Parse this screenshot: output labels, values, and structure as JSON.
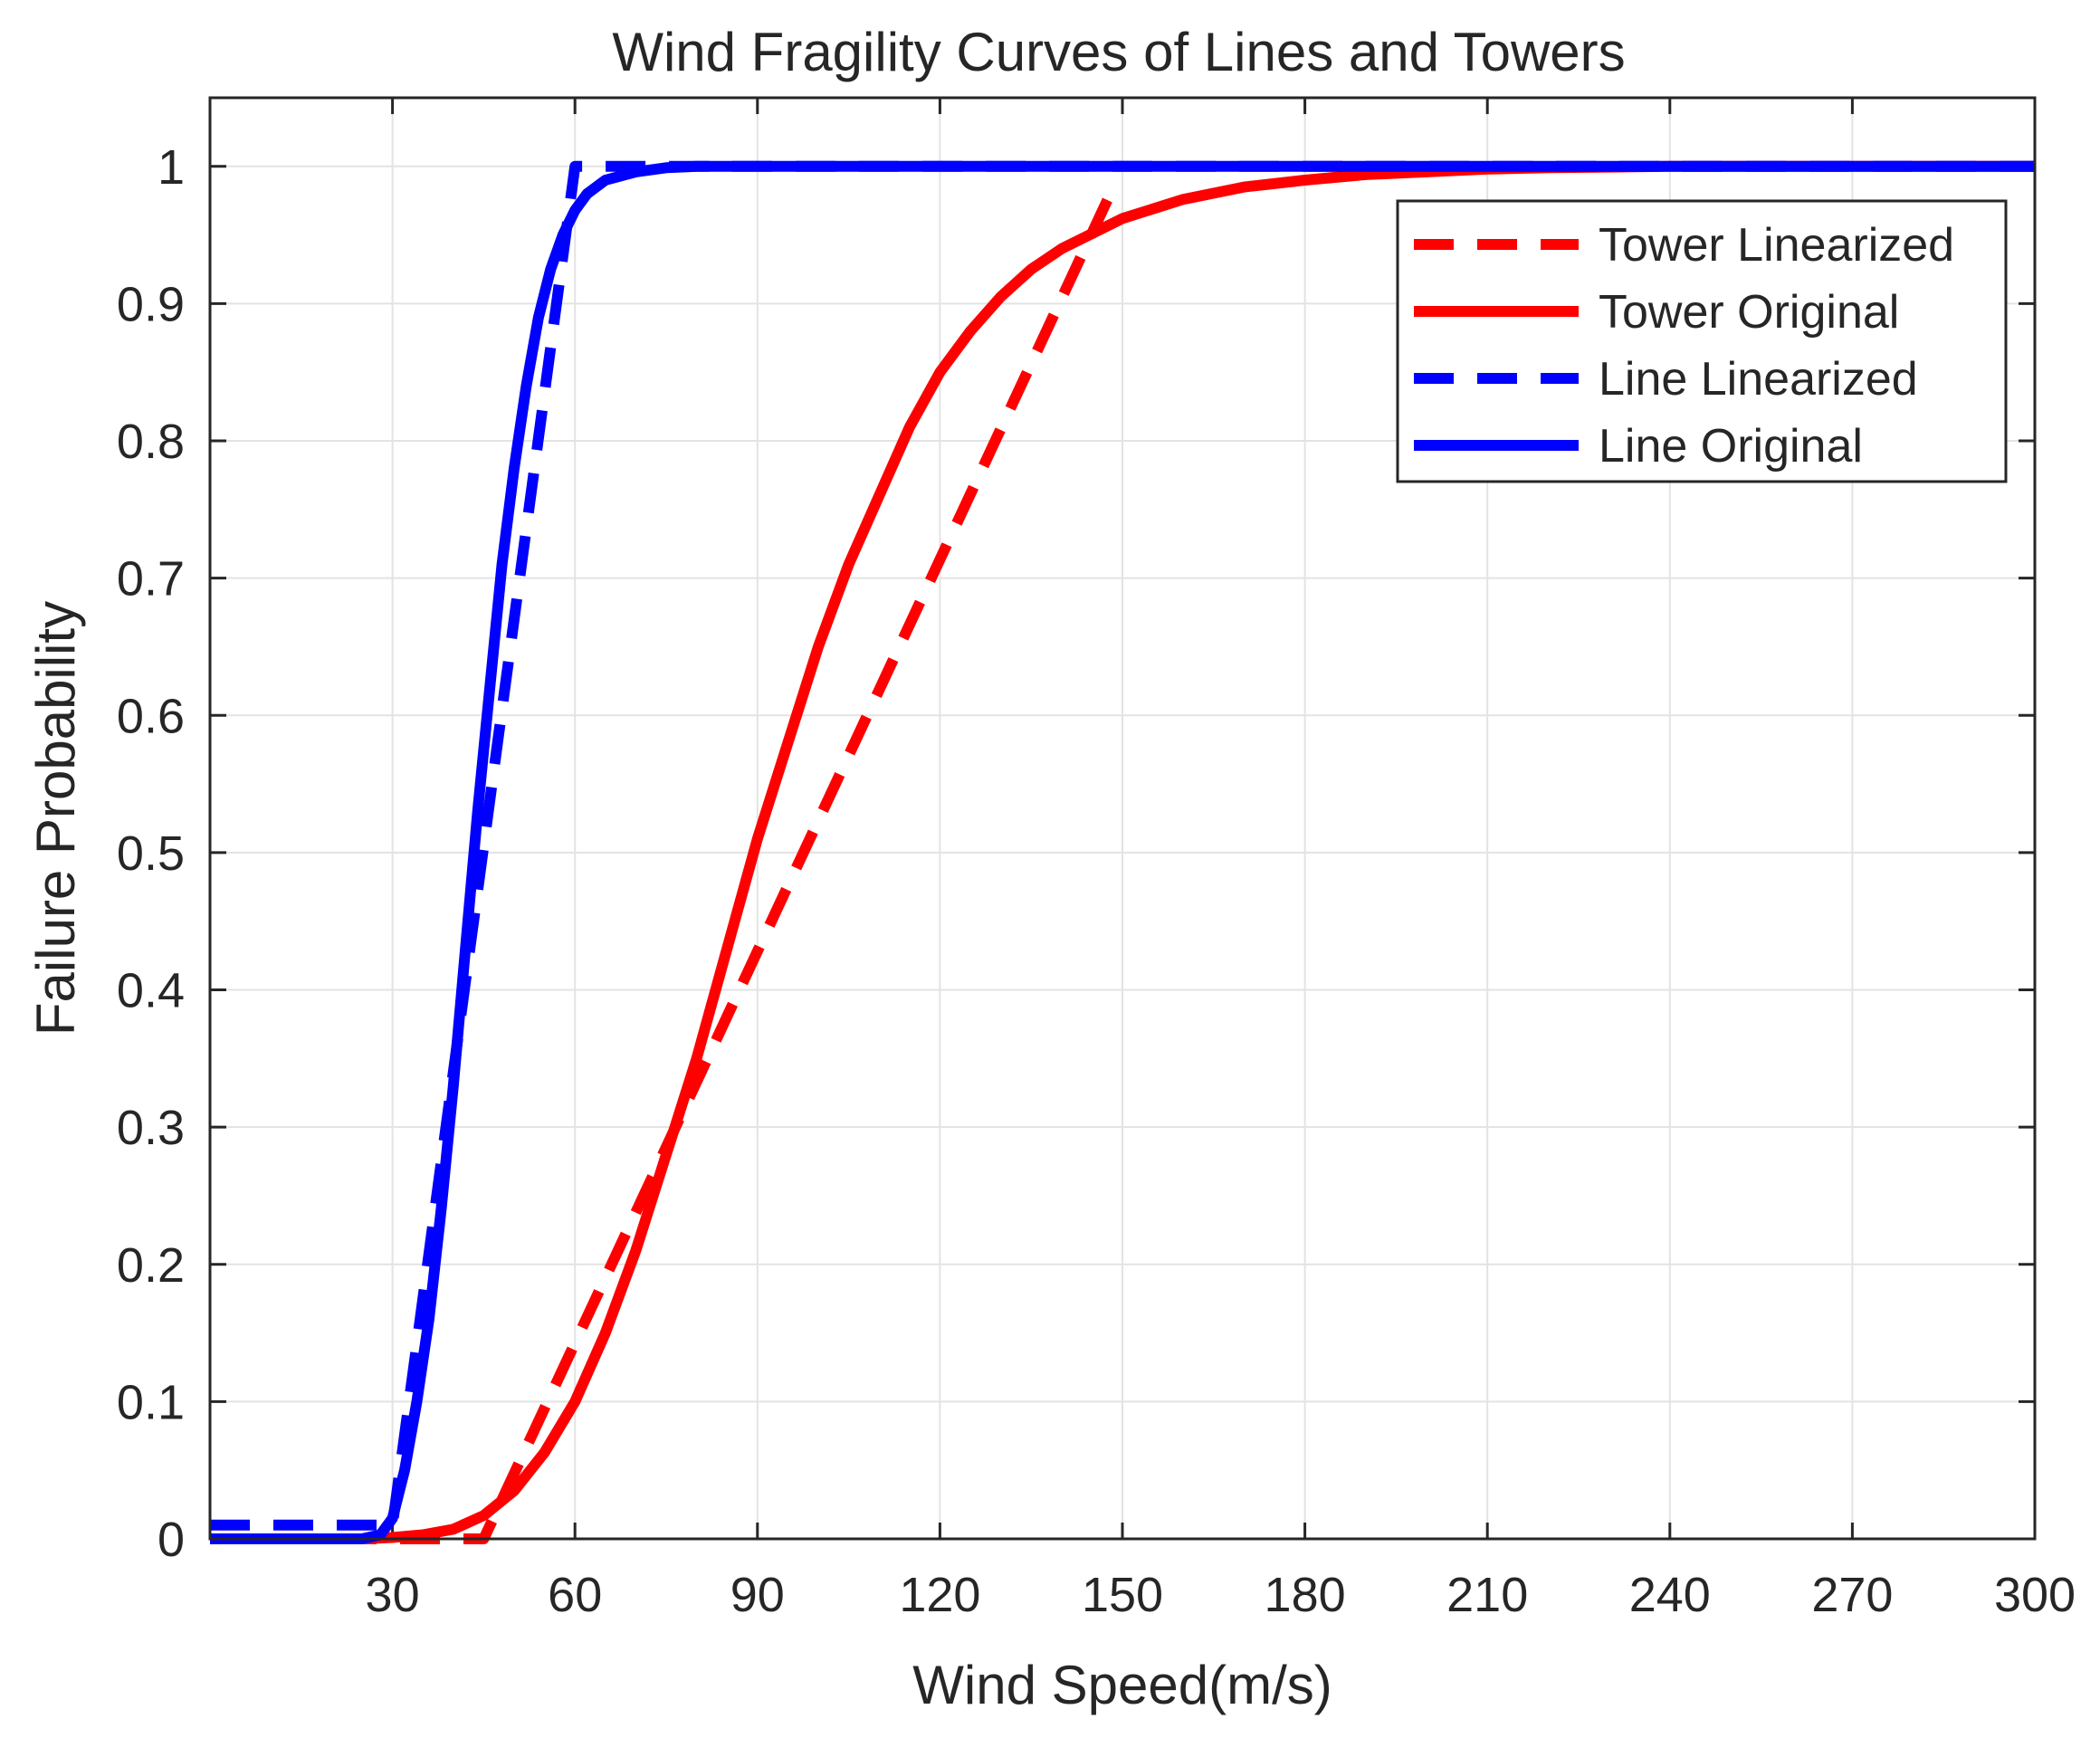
{
  "chart_data": {
    "type": "line",
    "title": "Wind Fragility Curves of Lines and Towers",
    "xlabel": "Wind Speed(m/s)",
    "ylabel": "Failure Probability",
    "xlim": [
      0,
      300
    ],
    "ylim": [
      0,
      1.05
    ],
    "xticks": [
      30,
      60,
      90,
      120,
      150,
      180,
      210,
      240,
      270,
      300
    ],
    "yticks": [
      0,
      0.1,
      0.2,
      0.3,
      0.4,
      0.5,
      0.6,
      0.7,
      0.8,
      0.9,
      1
    ],
    "xtick_labels": [
      "30",
      "60",
      "90",
      "120",
      "150",
      "180",
      "210",
      "240",
      "270",
      "300"
    ],
    "ytick_labels": [
      "0",
      "0.1",
      "0.2",
      "0.3",
      "0.4",
      "0.5",
      "0.6",
      "0.7",
      "0.8",
      "0.9",
      "1"
    ],
    "grid": true,
    "legend_position": "top-right",
    "series": [
      {
        "name": "Tower Linearized",
        "color": "#ff0000",
        "style": "dashed",
        "x": [
          0,
          45,
          148
        ],
        "y": [
          0,
          0,
          0.98
        ]
      },
      {
        "name": "Tower Original",
        "color": "#ff0000",
        "style": "solid",
        "x": [
          0,
          25,
          30,
          35,
          40,
          45,
          50,
          55,
          60,
          65,
          70,
          75,
          80,
          85,
          90,
          95,
          100,
          105,
          110,
          115,
          120,
          125,
          130,
          135,
          140,
          150,
          160,
          170,
          180,
          190,
          200,
          210,
          220,
          230,
          240,
          260,
          280,
          300
        ],
        "y": [
          0,
          0.0,
          0.001,
          0.003,
          0.007,
          0.017,
          0.035,
          0.063,
          0.1,
          0.15,
          0.21,
          0.28,
          0.35,
          0.43,
          0.51,
          0.58,
          0.65,
          0.71,
          0.76,
          0.81,
          0.85,
          0.88,
          0.905,
          0.925,
          0.94,
          0.962,
          0.976,
          0.985,
          0.99,
          0.994,
          0.996,
          0.998,
          0.999,
          0.9995,
          1.0,
          1.0,
          1.0,
          1.0
        ]
      },
      {
        "name": "Line Linearized",
        "color": "#0000ff",
        "style": "dashed",
        "x": [
          0,
          30,
          60,
          300
        ],
        "y": [
          0.01,
          0.01,
          1.0,
          1.0
        ]
      },
      {
        "name": "Line Original",
        "color": "#0000ff",
        "style": "solid",
        "x": [
          0,
          25,
          28,
          30,
          32,
          34,
          36,
          38,
          40,
          42,
          44,
          46,
          48,
          50,
          52,
          54,
          56,
          58,
          60,
          62,
          65,
          70,
          75,
          80,
          90,
          100,
          300
        ],
        "y": [
          0,
          0.0,
          0.003,
          0.015,
          0.05,
          0.1,
          0.16,
          0.24,
          0.33,
          0.43,
          0.53,
          0.62,
          0.71,
          0.78,
          0.84,
          0.89,
          0.925,
          0.95,
          0.968,
          0.98,
          0.99,
          0.996,
          0.999,
          1.0,
          1.0,
          1.0,
          1.0
        ]
      }
    ]
  }
}
